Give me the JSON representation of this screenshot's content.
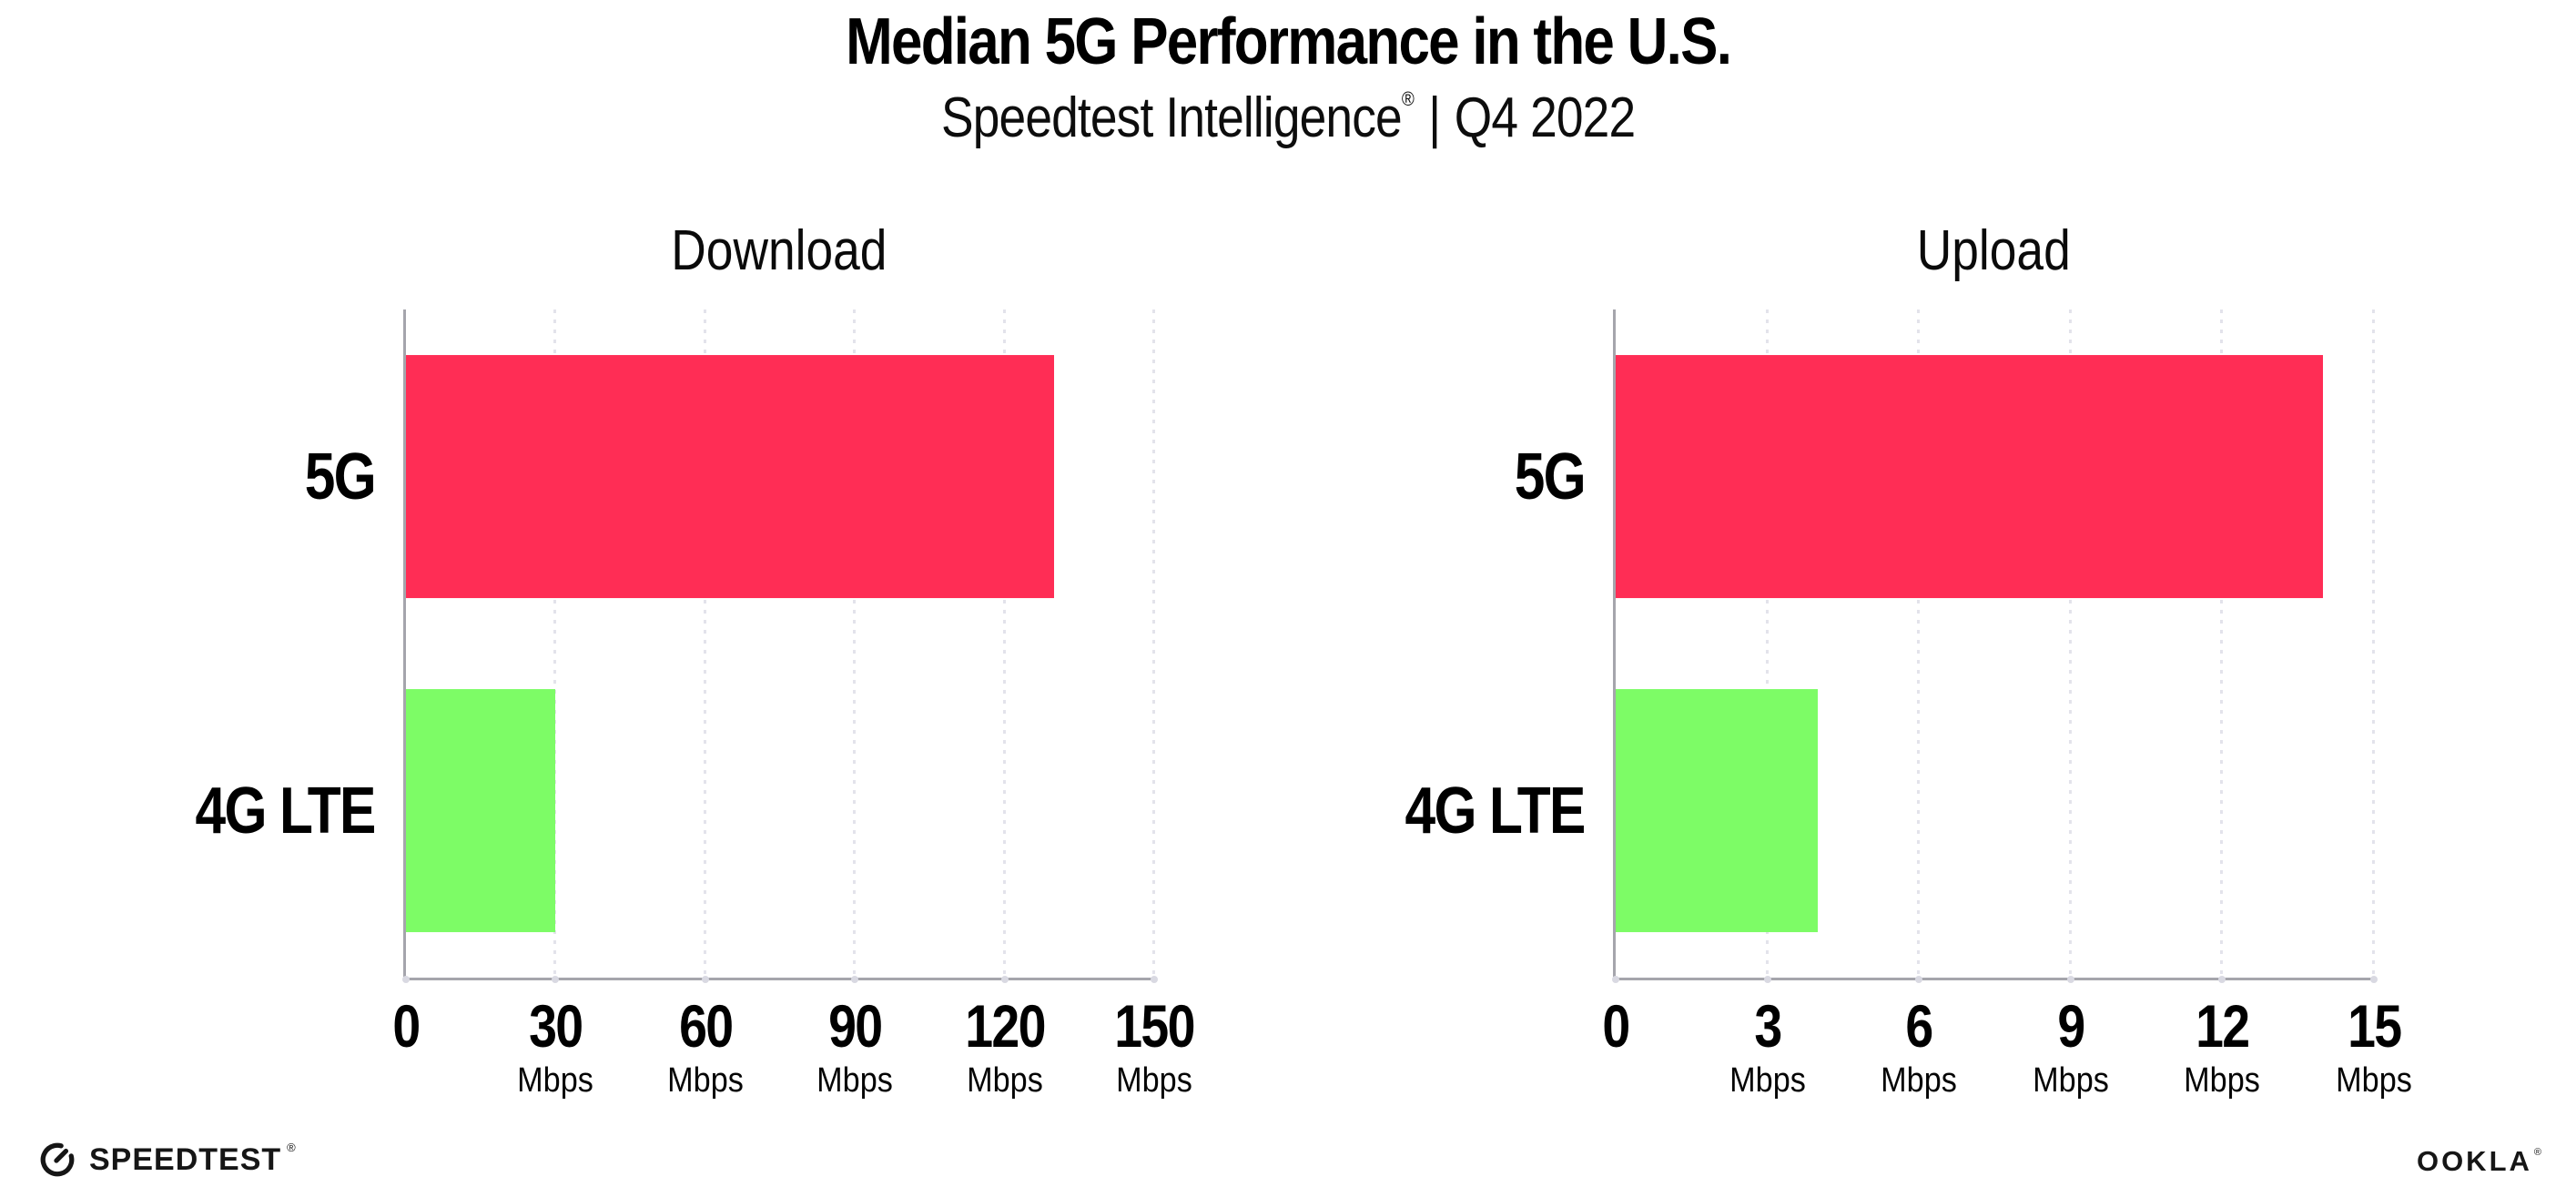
{
  "header": {
    "title": "Median 5G Performance in the U.S.",
    "subtitle_brand": "Speedtest Intelligence",
    "subtitle_reg": "®",
    "subtitle_separator": "|",
    "subtitle_period": "Q4 2022"
  },
  "colors": {
    "bar_5g": "#FF2D55",
    "bar_4g_lte": "#7DFC66",
    "axis": "#A5A5AC",
    "gridline": "#E3E3EB",
    "text": "#000000"
  },
  "chart_data": [
    {
      "type": "bar",
      "orientation": "horizontal",
      "title": "Download",
      "categories": [
        "5G",
        "4G LTE"
      ],
      "values": [
        130,
        30
      ],
      "unit": "Mbps",
      "xlabel": "",
      "ylabel": "",
      "xlim": [
        0,
        150
      ],
      "ticks": [
        0,
        30,
        60,
        90,
        120,
        150
      ],
      "bar_colors": [
        "#FF2D55",
        "#7DFC66"
      ],
      "grid": "vertical-dotted",
      "legend_position": "none"
    },
    {
      "type": "bar",
      "orientation": "horizontal",
      "title": "Upload",
      "categories": [
        "5G",
        "4G LTE"
      ],
      "values": [
        14,
        4
      ],
      "unit": "Mbps",
      "xlabel": "",
      "ylabel": "",
      "xlim": [
        0,
        15
      ],
      "ticks": [
        0,
        3,
        6,
        9,
        12,
        15
      ],
      "bar_colors": [
        "#FF2D55",
        "#7DFC66"
      ],
      "grid": "vertical-dotted",
      "legend_position": "none"
    }
  ],
  "footer": {
    "speedtest_label": "SPEEDTEST",
    "speedtest_reg": "®",
    "ookla_label": "OOKLA",
    "ookla_reg": "®"
  }
}
